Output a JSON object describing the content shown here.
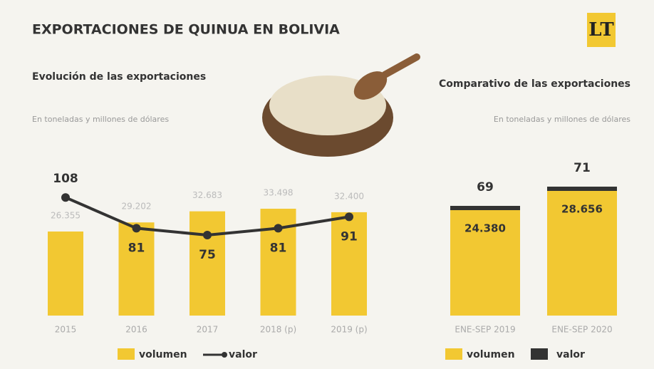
{
  "header": {
    "title": "EXPORTACIONES DE QUINUA EN BOLIVIA",
    "logo": "LT"
  },
  "chart_data": [
    {
      "type": "combo",
      "title": "Evolución de las exportaciones",
      "subtitle": "En toneladas y millones de dólares",
      "categories": [
        "2015",
        "2016",
        "2017",
        "2018 (p)",
        "2019 (p)"
      ],
      "series": [
        {
          "name": "volumen",
          "color": "#f2c832",
          "values": [
            26355,
            29202,
            32683,
            33498,
            32400
          ],
          "value_labels": [
            "26.355",
            "29.202",
            "32.683",
            "33.498",
            "32.400"
          ]
        },
        {
          "name": "valor",
          "color": "#333333",
          "values": [
            108,
            81,
            75,
            81,
            91
          ]
        }
      ]
    },
    {
      "type": "bar",
      "title": "Comparativo de las exportaciones",
      "subtitle": "En toneladas y millones de dólares",
      "categories": [
        "ENE-SEP 2019",
        "ENE-SEP 2020"
      ],
      "series": [
        {
          "name": "volumen",
          "color": "#f2c832",
          "values": [
            24380,
            28656
          ],
          "value_labels": [
            "24.380",
            "28.656"
          ]
        },
        {
          "name": "valor",
          "color": "#333333",
          "values": [
            69,
            71
          ]
        }
      ]
    }
  ]
}
